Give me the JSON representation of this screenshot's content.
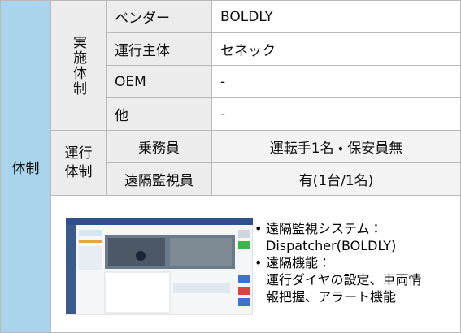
{
  "section_label": "体制",
  "groups": [
    {
      "label": "実施体制",
      "rows": [
        [
          "ベンダー",
          "BOLDLY"
        ],
        [
          "運行主体",
          "セネック"
        ],
        [
          "OEM",
          "-"
        ],
        [
          "他",
          "-"
        ]
      ]
    },
    {
      "label": "運行体制",
      "rows": [
        [
          "乗務員",
          "運転手1名 ・ 保安員無"
        ],
        [
          "遠隔監視員",
          "有(1台/1名)"
        ]
      ]
    }
  ],
  "bullets": [
    [
      "遠隔監視システム：",
      "Dispatcher(BOLDLY)"
    ],
    [
      "遠隔機能：",
      "運行ダイヤの設定、車両情",
      "報把握、アラート機能"
    ]
  ]
}
